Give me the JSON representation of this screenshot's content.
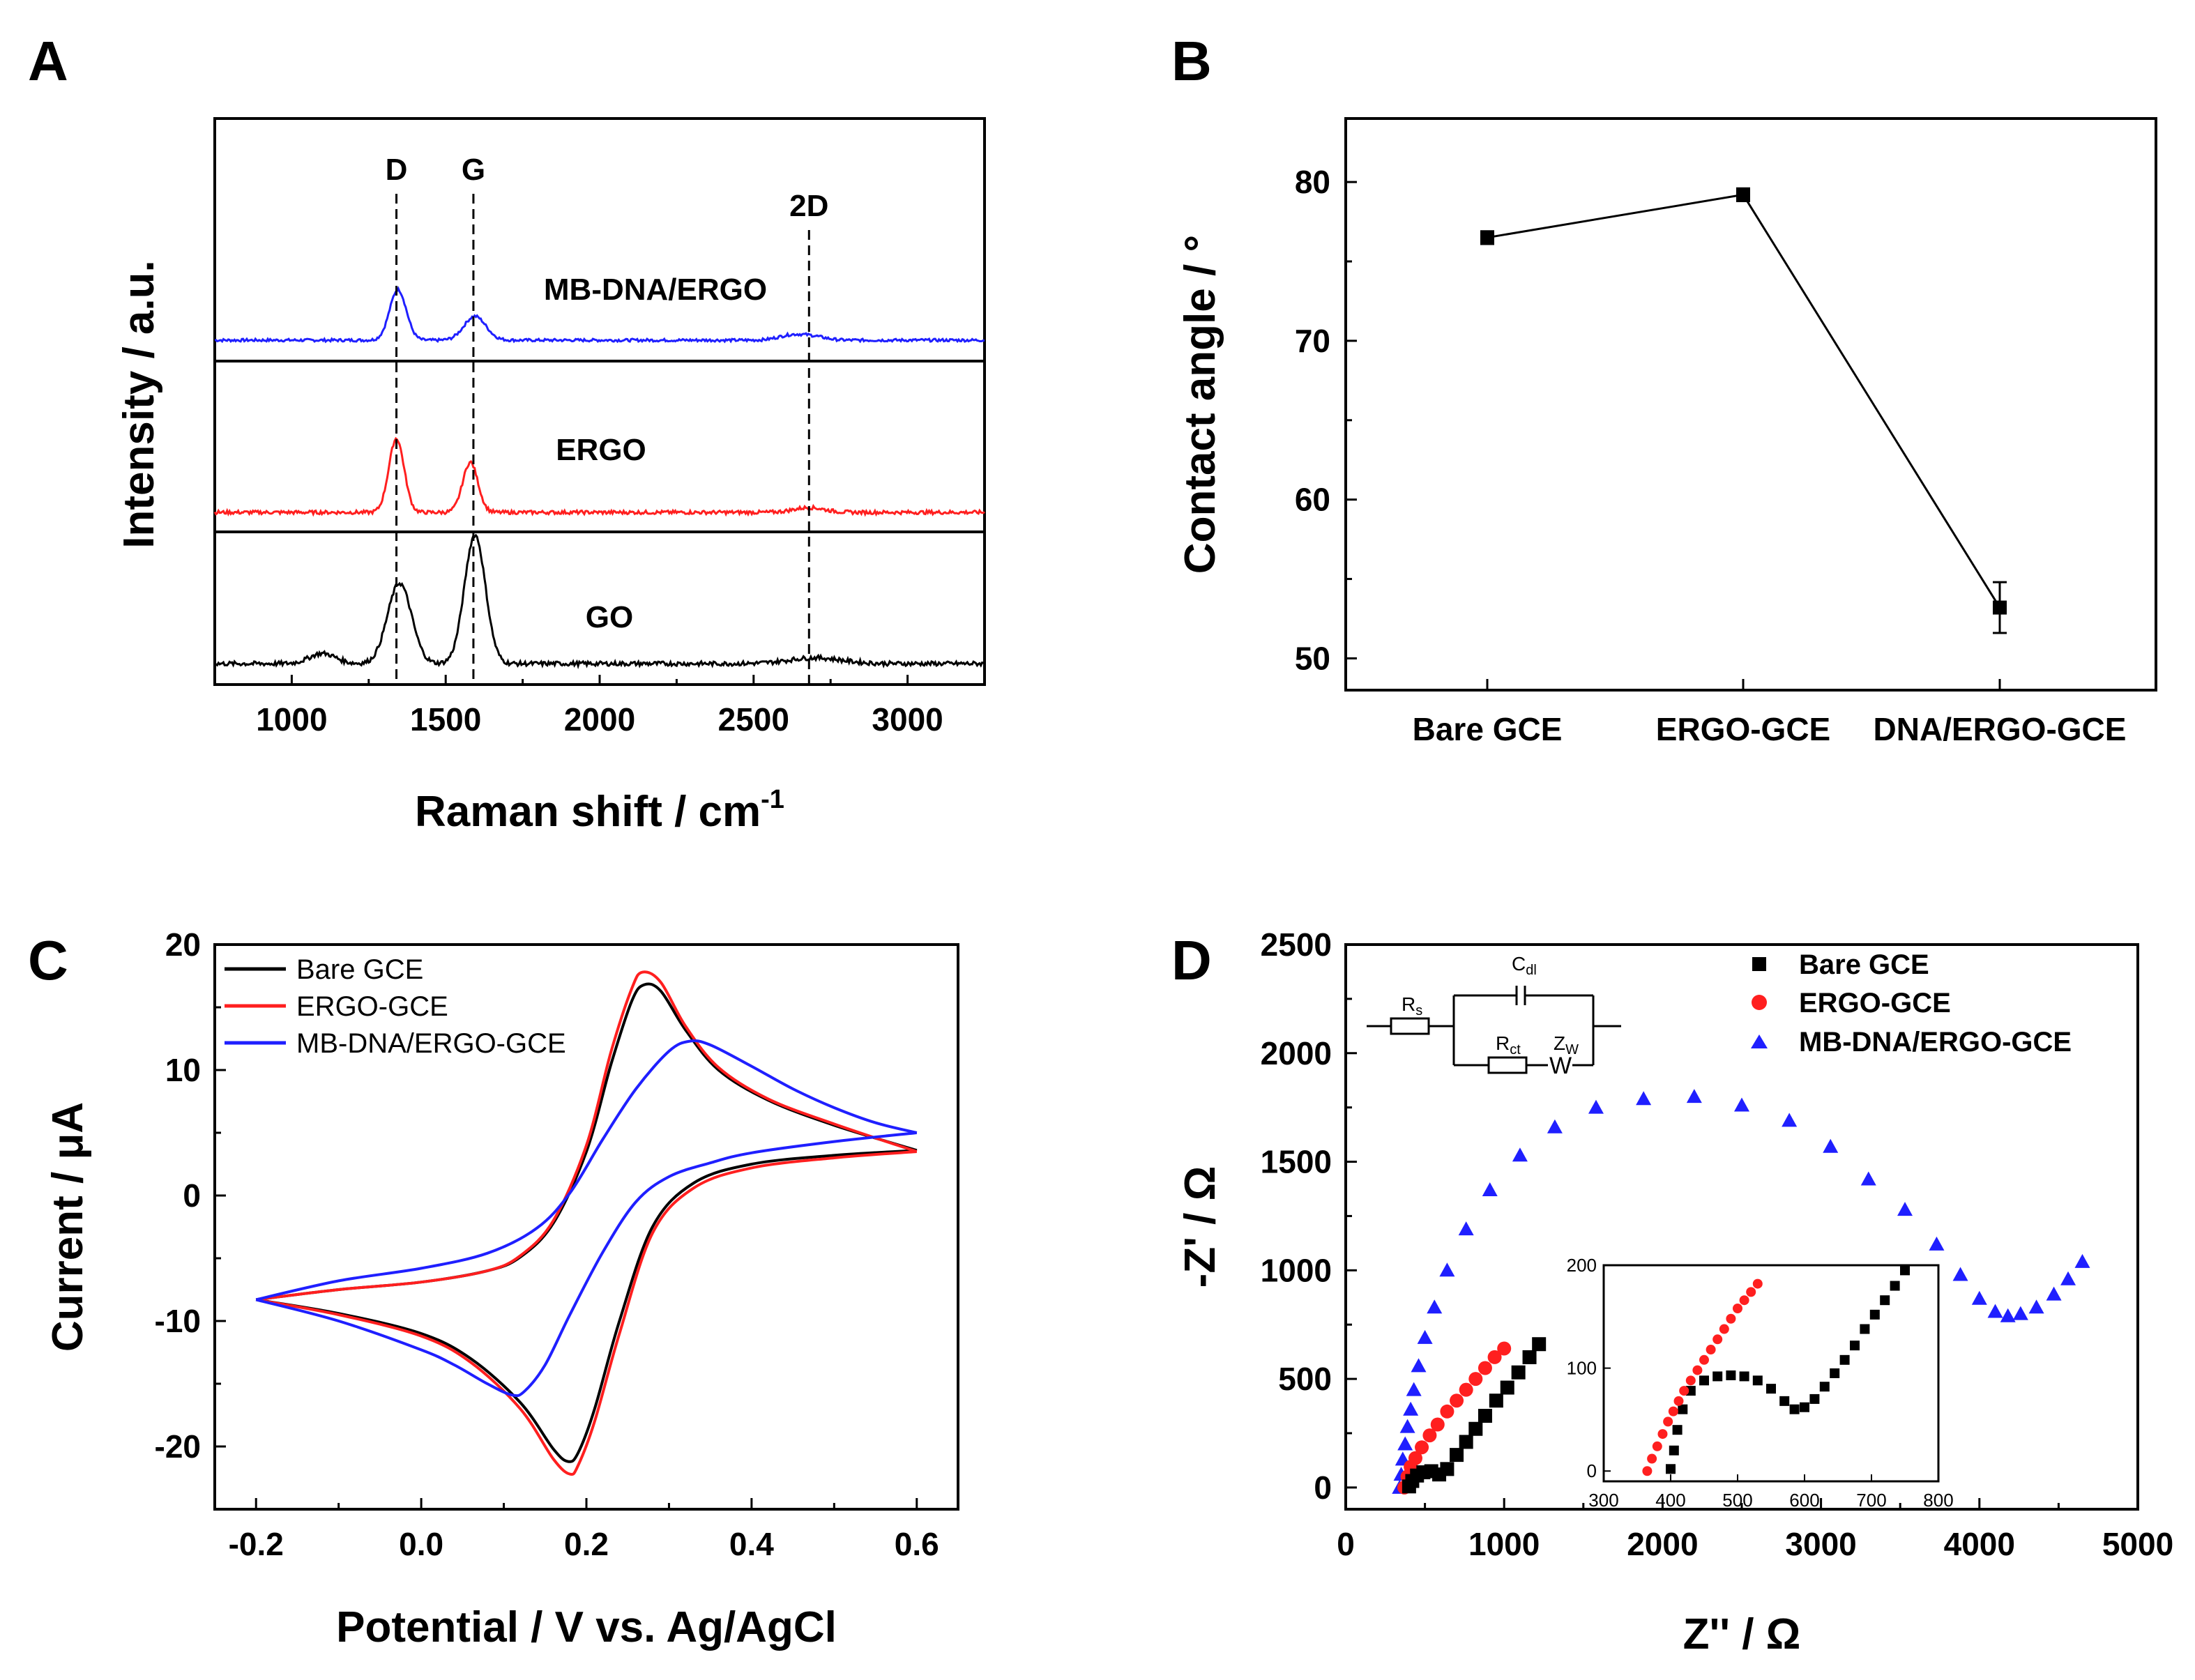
{
  "colors": {
    "black": "#000000",
    "red": "#ff1f1f",
    "blue": "#1f1fff"
  },
  "chart_data": [
    {
      "panel": "A",
      "type": "line",
      "xlabel": "Raman shift / cm",
      "xlabel_sup": "-1",
      "ylabel": "Intensity / a.u.",
      "xlim": [
        750,
        3250
      ],
      "xticks": [
        1000,
        1500,
        2000,
        2500,
        3000
      ],
      "peak_lines": [
        {
          "label": "D",
          "x": 1340
        },
        {
          "label": "G",
          "x": 1590
        },
        {
          "label": "2D",
          "x": 2680
        }
      ],
      "series": [
        {
          "name": "MB-DNA/ERGO",
          "color": "#1f1fff",
          "peaks": [
            {
              "x": 1345,
              "height": 0.55,
              "width": 38
            },
            {
              "x": 1595,
              "height": 0.26,
              "width": 50
            },
            {
              "x": 2620,
              "height": 0.05,
              "width": 60
            },
            {
              "x": 2690,
              "height": 0.04,
              "width": 60
            }
          ]
        },
        {
          "name": "ERGO",
          "color": "#ff1f1f",
          "peaks": [
            {
              "x": 1340,
              "height": 0.62,
              "width": 35
            },
            {
              "x": 1580,
              "height": 0.42,
              "width": 35
            },
            {
              "x": 2680,
              "height": 0.04,
              "width": 70
            }
          ]
        },
        {
          "name": "GO",
          "color": "#000000",
          "peaks": [
            {
              "x": 1350,
              "height": 0.55,
              "width": 55
            },
            {
              "x": 1595,
              "height": 0.88,
              "width": 48
            },
            {
              "x": 1100,
              "height": 0.07,
              "width": 60
            },
            {
              "x": 2700,
              "height": 0.04,
              "width": 120
            }
          ]
        }
      ]
    },
    {
      "panel": "B",
      "type": "line",
      "xlabel": "",
      "ylabel": "Contact angle / °",
      "categories": [
        "Bare GCE",
        "ERGO-GCE",
        "DNA/ERGO-GCE"
      ],
      "values": [
        76.5,
        79.2,
        53.2
      ],
      "errors": [
        0.4,
        0.4,
        1.6
      ],
      "ylim": [
        48,
        84
      ],
      "yticks": [
        50,
        60,
        70,
        80
      ]
    },
    {
      "panel": "C",
      "type": "line",
      "xlabel": "Potential / V vs. Ag/AgCl",
      "ylabel": "Current / μA",
      "xlim": [
        -0.25,
        0.65
      ],
      "ylim": [
        -25,
        20
      ],
      "xticks": [
        -0.2,
        0.0,
        0.2,
        0.4,
        0.6
      ],
      "xtick_labels": [
        "-0.2",
        "0.0",
        "0.2",
        "0.4",
        "0.6"
      ],
      "yticks": [
        -20,
        -10,
        0,
        10,
        20
      ],
      "series": [
        {
          "name": "Bare GCE",
          "color": "#000000",
          "forward": [
            [
              -0.2,
              -8.3
            ],
            [
              -0.1,
              -7.5
            ],
            [
              0.0,
              -6.9
            ],
            [
              0.08,
              -6.0
            ],
            [
              0.12,
              -4.9
            ],
            [
              0.16,
              -2.2
            ],
            [
              0.2,
              3.5
            ],
            [
              0.23,
              10.5
            ],
            [
              0.255,
              15.5
            ],
            [
              0.27,
              16.8
            ],
            [
              0.29,
              16.3
            ],
            [
              0.32,
              13.2
            ],
            [
              0.36,
              10.0
            ],
            [
              0.42,
              7.6
            ],
            [
              0.5,
              5.6
            ],
            [
              0.6,
              3.6
            ]
          ],
          "reverse": [
            [
              0.6,
              3.6
            ],
            [
              0.5,
              3.2
            ],
            [
              0.4,
              2.5
            ],
            [
              0.33,
              1.0
            ],
            [
              0.28,
              -2.5
            ],
            [
              0.24,
              -10.0
            ],
            [
              0.21,
              -17.0
            ],
            [
              0.19,
              -20.5
            ],
            [
              0.178,
              -21.2
            ],
            [
              0.16,
              -20.2
            ],
            [
              0.12,
              -16.5
            ],
            [
              0.06,
              -13.0
            ],
            [
              0.0,
              -11.0
            ],
            [
              -0.1,
              -9.4
            ],
            [
              -0.2,
              -8.3
            ]
          ]
        },
        {
          "name": "ERGO-GCE",
          "color": "#ff1f1f",
          "forward": [
            [
              -0.2,
              -8.3
            ],
            [
              -0.1,
              -7.5
            ],
            [
              0.0,
              -6.9
            ],
            [
              0.08,
              -6.0
            ],
            [
              0.12,
              -4.8
            ],
            [
              0.16,
              -2.0
            ],
            [
              0.2,
              4.0
            ],
            [
              0.23,
              11.5
            ],
            [
              0.255,
              16.5
            ],
            [
              0.268,
              17.8
            ],
            [
              0.29,
              17.0
            ],
            [
              0.32,
              13.5
            ],
            [
              0.36,
              10.2
            ],
            [
              0.42,
              7.7
            ],
            [
              0.5,
              5.7
            ],
            [
              0.6,
              3.5
            ]
          ],
          "reverse": [
            [
              0.6,
              3.5
            ],
            [
              0.5,
              3.0
            ],
            [
              0.4,
              2.2
            ],
            [
              0.33,
              0.6
            ],
            [
              0.28,
              -3.0
            ],
            [
              0.24,
              -11.0
            ],
            [
              0.21,
              -18.0
            ],
            [
              0.19,
              -21.5
            ],
            [
              0.18,
              -22.2
            ],
            [
              0.16,
              -21.0
            ],
            [
              0.12,
              -17.0
            ],
            [
              0.06,
              -13.3
            ],
            [
              0.0,
              -11.2
            ],
            [
              -0.1,
              -9.5
            ],
            [
              -0.2,
              -8.3
            ]
          ]
        },
        {
          "name": "MB-DNA/ERGO-GCE",
          "color": "#1f1fff",
          "forward": [
            [
              -0.2,
              -8.3
            ],
            [
              -0.1,
              -6.8
            ],
            [
              0.0,
              -5.8
            ],
            [
              0.08,
              -4.6
            ],
            [
              0.14,
              -2.6
            ],
            [
              0.18,
              0.2
            ],
            [
              0.22,
              4.5
            ],
            [
              0.26,
              8.5
            ],
            [
              0.3,
              11.5
            ],
            [
              0.325,
              12.3
            ],
            [
              0.35,
              12.0
            ],
            [
              0.4,
              10.3
            ],
            [
              0.45,
              8.5
            ],
            [
              0.5,
              7.0
            ],
            [
              0.55,
              5.8
            ],
            [
              0.6,
              5.0
            ]
          ],
          "reverse": [
            [
              0.6,
              5.0
            ],
            [
              0.5,
              4.3
            ],
            [
              0.4,
              3.4
            ],
            [
              0.35,
              2.6
            ],
            [
              0.3,
              1.5
            ],
            [
              0.26,
              -0.5
            ],
            [
              0.22,
              -4.5
            ],
            [
              0.18,
              -9.5
            ],
            [
              0.15,
              -13.5
            ],
            [
              0.125,
              -15.6
            ],
            [
              0.11,
              -15.9
            ],
            [
              0.08,
              -15.0
            ],
            [
              0.04,
              -13.5
            ],
            [
              0.0,
              -12.3
            ],
            [
              -0.1,
              -10.0
            ],
            [
              -0.2,
              -8.3
            ]
          ]
        }
      ]
    },
    {
      "panel": "D",
      "type": "scatter",
      "xlabel": "Z'' / Ω",
      "ylabel": "-Z' / Ω",
      "xlim": [
        0,
        5000
      ],
      "ylim": [
        -100,
        2500
      ],
      "xticks": [
        0,
        1000,
        2000,
        3000,
        4000,
        5000
      ],
      "yticks": [
        0,
        500,
        1000,
        1500,
        2000,
        2500
      ],
      "series": [
        {
          "name": "Bare GCE",
          "color": "#000000",
          "marker": "square",
          "points": [
            [
              400,
              5
            ],
            [
              420,
              30
            ],
            [
              450,
              55
            ],
            [
              490,
              70
            ],
            [
              540,
              75
            ],
            [
              590,
              60
            ],
            [
              640,
              85
            ],
            [
              700,
              150
            ],
            [
              760,
              210
            ],
            [
              820,
              270
            ],
            [
              880,
              330
            ],
            [
              950,
              400
            ],
            [
              1020,
              460
            ],
            [
              1090,
              530
            ],
            [
              1160,
              600
            ],
            [
              1220,
              660
            ]
          ]
        },
        {
          "name": "ERGO-GCE",
          "color": "#ff1f1f",
          "marker": "circle",
          "points": [
            [
              370,
              0
            ],
            [
              390,
              50
            ],
            [
              410,
              95
            ],
            [
              440,
              135
            ],
            [
              480,
              185
            ],
            [
              530,
              240
            ],
            [
              580,
              290
            ],
            [
              640,
              350
            ],
            [
              700,
              400
            ],
            [
              760,
              450
            ],
            [
              820,
              500
            ],
            [
              880,
              550
            ],
            [
              940,
              600
            ],
            [
              1000,
              640
            ]
          ]
        },
        {
          "name": "MB-DNA/ERGO-GCE",
          "color": "#1f1fff",
          "marker": "triangle",
          "points": [
            [
              340,
              0
            ],
            [
              350,
              60
            ],
            [
              360,
              130
            ],
            [
              375,
              200
            ],
            [
              390,
              280
            ],
            [
              410,
              360
            ],
            [
              430,
              450
            ],
            [
              460,
              560
            ],
            [
              500,
              690
            ],
            [
              560,
              830
            ],
            [
              640,
              1000
            ],
            [
              760,
              1190
            ],
            [
              910,
              1370
            ],
            [
              1100,
              1530
            ],
            [
              1320,
              1660
            ],
            [
              1580,
              1750
            ],
            [
              1880,
              1790
            ],
            [
              2200,
              1800
            ],
            [
              2500,
              1760
            ],
            [
              2800,
              1690
            ],
            [
              3060,
              1570
            ],
            [
              3300,
              1420
            ],
            [
              3530,
              1280
            ],
            [
              3730,
              1120
            ],
            [
              3880,
              980
            ],
            [
              4000,
              870
            ],
            [
              4100,
              810
            ],
            [
              4180,
              790
            ],
            [
              4260,
              800
            ],
            [
              4360,
              830
            ],
            [
              4470,
              890
            ],
            [
              4560,
              960
            ],
            [
              4650,
              1040
            ]
          ]
        }
      ],
      "inset": {
        "xlim": [
          300,
          800
        ],
        "ylim": [
          -10,
          200
        ],
        "xticks": [
          300,
          400,
          500,
          600,
          700,
          800
        ],
        "yticks": [
          0,
          100,
          200
        ],
        "series": [
          {
            "name": "Bare GCE",
            "points": [
              [
                400,
                2
              ],
              [
                405,
                20
              ],
              [
                410,
                40
              ],
              [
                418,
                60
              ],
              [
                430,
                78
              ],
              [
                450,
                88
              ],
              [
                470,
                92
              ],
              [
                490,
                93
              ],
              [
                510,
                92
              ],
              [
                530,
                88
              ],
              [
                550,
                80
              ],
              [
                570,
                68
              ],
              [
                585,
                60
              ],
              [
                600,
                62
              ],
              [
                615,
                70
              ],
              [
                630,
                82
              ],
              [
                645,
                95
              ],
              [
                660,
                108
              ],
              [
                675,
                122
              ],
              [
                690,
                138
              ],
              [
                705,
                152
              ],
              [
                720,
                166
              ],
              [
                735,
                180
              ],
              [
                750,
                195
              ]
            ]
          },
          {
            "name": "ERGO-GCE",
            "points": [
              [
                365,
                0
              ],
              [
                372,
                12
              ],
              [
                380,
                24
              ],
              [
                388,
                36
              ],
              [
                396,
                48
              ],
              [
                404,
                58
              ],
              [
                412,
                68
              ],
              [
                420,
                78
              ],
              [
                430,
                88
              ],
              [
                440,
                98
              ],
              [
                450,
                108
              ],
              [
                460,
                118
              ],
              [
                470,
                128
              ],
              [
                480,
                138
              ],
              [
                490,
                148
              ],
              [
                500,
                158
              ],
              [
                510,
                166
              ],
              [
                520,
                174
              ],
              [
                530,
                182
              ]
            ]
          }
        ]
      },
      "circuit": {
        "rs": "R",
        "rs_sub": "s",
        "cdl": "C",
        "cdl_sub": "dl",
        "rct": "R",
        "rct_sub": "ct",
        "zw": "Z",
        "zw_sub": "W",
        "w": "W"
      }
    }
  ],
  "panels": {
    "a": "A",
    "b": "B",
    "c": "C",
    "d": "D"
  }
}
